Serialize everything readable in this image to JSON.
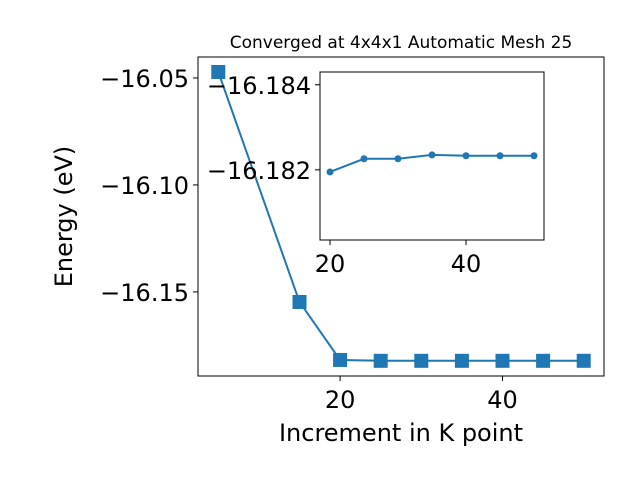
{
  "chart_data": [
    {
      "type": "line",
      "title": "Converged at 4x4x1 Automatic Mesh 25",
      "x_label": "Increment in K point",
      "y_label": "Energy (eV)",
      "x": [
        5,
        15,
        20,
        25,
        30,
        35,
        40,
        45,
        50
      ],
      "series": [
        {
          "color": "#1f77b4",
          "marker": "square",
          "values": [
            -16.0472,
            -16.1547,
            -16.1818,
            -16.1822,
            -16.1822,
            -16.1822,
            -16.1822,
            -16.1822,
            -16.1822
          ]
        }
      ],
      "xlim": [
        2.5,
        52.5
      ],
      "ylim": [
        -16.1893,
        -16.0402
      ],
      "xticks": [
        20,
        40
      ],
      "yticks": [
        {
          "value": -16.05,
          "label": "−16.05"
        },
        {
          "value": -16.1,
          "label": "−16.10"
        },
        {
          "value": -16.15,
          "label": "−16.15"
        }
      ]
    },
    {
      "type": "line",
      "x": [
        20,
        25,
        30,
        35,
        40,
        45,
        50
      ],
      "series": [
        {
          "color": "#1f77b4",
          "marker": "circle",
          "values": [
            -16.18195,
            -16.18226,
            -16.18226,
            -16.18235,
            -16.18233,
            -16.18233,
            -16.18233
          ]
        }
      ],
      "xlim": [
        18.53,
        51.47
      ],
      "ylim": [
        -16.18035,
        -16.1843
      ],
      "xticks": [
        20,
        40
      ],
      "yticks": [
        {
          "value": -16.184,
          "label": "−16.184"
        },
        {
          "value": -16.182,
          "label": "−16.182"
        }
      ]
    }
  ]
}
